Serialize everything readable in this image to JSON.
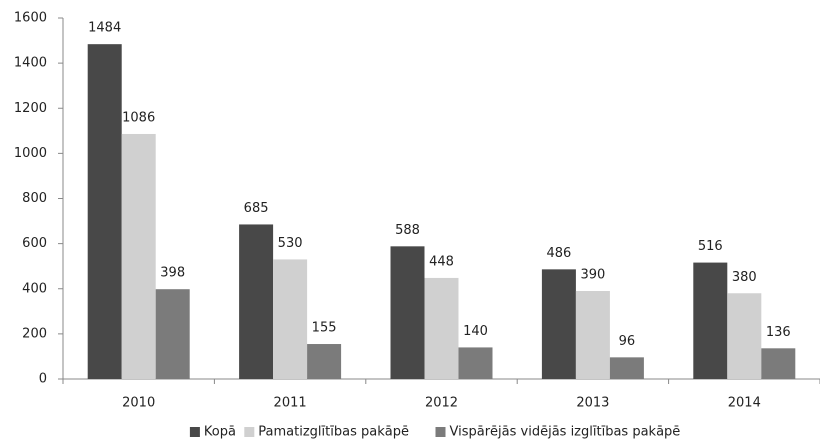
{
  "chart_data": {
    "type": "bar",
    "categories": [
      "2010",
      "2011",
      "2012",
      "2013",
      "2014"
    ],
    "series": [
      {
        "name": "Kopā",
        "color": "#484848",
        "values": [
          1484,
          685,
          588,
          486,
          516
        ]
      },
      {
        "name": "Pamatizglītības pakāpē",
        "color": "#d0d0d0",
        "values": [
          1086,
          530,
          448,
          390,
          380
        ]
      },
      {
        "name": "Vispārējās vidējās izglītības pakāpē",
        "color": "#7b7b7b",
        "values": [
          398,
          155,
          140,
          96,
          136
        ]
      }
    ],
    "ylim": [
      0,
      1600
    ],
    "yticks": [
      0,
      200,
      400,
      600,
      800,
      1000,
      1200,
      1400,
      1600
    ],
    "grid": false,
    "legend": "bottom"
  }
}
